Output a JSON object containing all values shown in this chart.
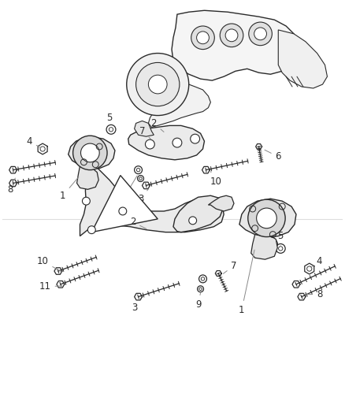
{
  "background_color": "#ffffff",
  "line_color": "#2a2a2a",
  "label_color": "#2a2a2a",
  "callout_line_color": "#888888",
  "fig_width": 4.38,
  "fig_height": 5.33,
  "dpi": 100
}
